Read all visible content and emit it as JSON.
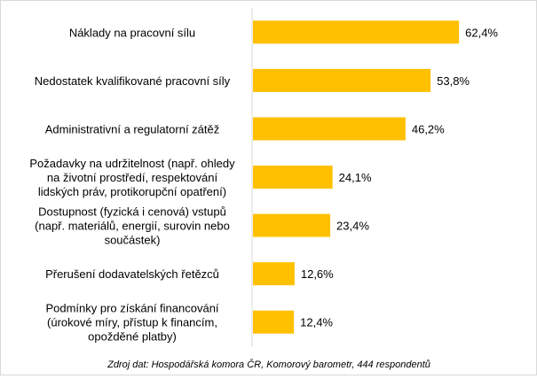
{
  "chart_data": {
    "type": "bar",
    "orientation": "horizontal",
    "categories": [
      [
        "Náklady na pracovní sílu"
      ],
      [
        "Nedostatek kvalifikované pracovní síly"
      ],
      [
        "Administrativní a regulatorní zátěž"
      ],
      [
        "Požadavky na udržitelnost (např. ohledy",
        "na životní prostředí, respektování",
        "lidských práv, protikorupční opatření)"
      ],
      [
        "Dostupnost (fyzická i cenová) vstupů",
        "(např. materiálů, energií, surovin nebo",
        "součástek)"
      ],
      [
        "Přerušení dodavatelských řetězců"
      ],
      [
        "Podmínky pro získání financování",
        "(úrokové míry, přístup k financím,",
        "opožděné platby)"
      ]
    ],
    "values": [
      62.4,
      53.8,
      46.2,
      24.1,
      23.4,
      12.6,
      12.4
    ],
    "value_labels": [
      "62,4%",
      "53,8%",
      "46,2%",
      "24,1%",
      "23,4%",
      "12,6%",
      "12,4%"
    ],
    "xlim": [
      0,
      100
    ],
    "bar_color": "#ffc000",
    "axis_color": "#d9d9d9",
    "grid": false,
    "legend": "none",
    "source": "Zdroj dat: Hospodářská komora ČR, Komorový  barometr, 444 respondentů"
  }
}
